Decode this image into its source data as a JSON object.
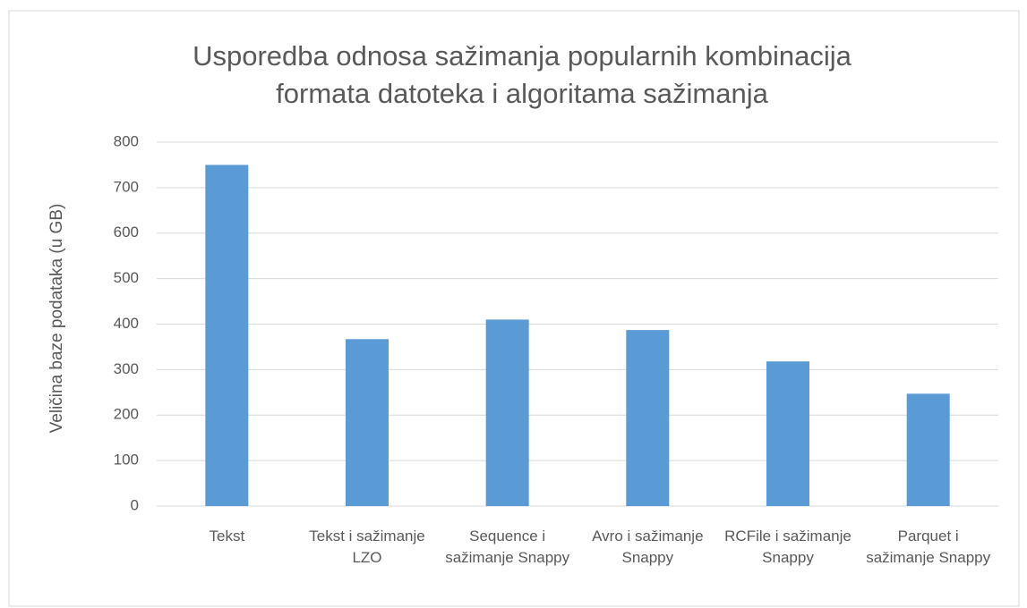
{
  "chart_data": {
    "type": "bar",
    "title": "Usporedba odnosa sažimanja popularnih kombinacija formata datoteka i algoritama sažimanja",
    "y_label": "Veličina baze podataka (u GB)",
    "categories": [
      "Tekst",
      "Tekst i sažimanje LZO",
      "Sequence i sažimanje Snappy",
      "Avro i sažimanje Snappy",
      "RCFile i sažimanje Snappy",
      "Parquet i sažimanje Snappy"
    ],
    "values": [
      750,
      367,
      410,
      387,
      318,
      247
    ],
    "color": "#5b9bd5",
    "ylim": [
      0,
      800
    ],
    "yticks": [
      0,
      100,
      200,
      300,
      400,
      500,
      600,
      700,
      800
    ],
    "grid": true
  }
}
